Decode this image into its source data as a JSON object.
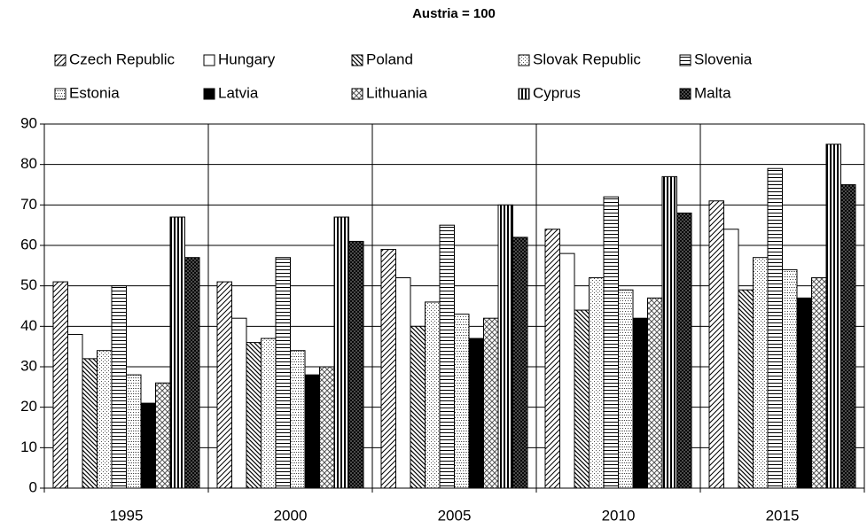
{
  "chart_data": {
    "type": "bar",
    "title": "Austria = 100",
    "categories": [
      "1995",
      "2000",
      "2005",
      "2010",
      "2015"
    ],
    "series": [
      {
        "name": "Czech Republic",
        "color": "#000000",
        "pattern": "diagonal-up",
        "values": [
          51,
          51,
          59,
          64,
          71
        ]
      },
      {
        "name": "Hungary",
        "color": "#000000",
        "pattern": "none",
        "values": [
          38,
          42,
          52,
          58,
          64
        ]
      },
      {
        "name": "Poland",
        "color": "#000000",
        "pattern": "diagonal-down",
        "values": [
          32,
          36,
          40,
          44,
          49
        ]
      },
      {
        "name": "Slovak Republic",
        "color": "#000000",
        "pattern": "dots",
        "values": [
          34,
          37,
          46,
          52,
          57
        ]
      },
      {
        "name": "Slovenia",
        "color": "#000000",
        "pattern": "horizontal",
        "values": [
          50,
          57,
          65,
          72,
          79
        ]
      },
      {
        "name": "Estonia",
        "color": "#000000",
        "pattern": "dotted-grid",
        "values": [
          28,
          34,
          43,
          49,
          54
        ]
      },
      {
        "name": "Latvia",
        "color": "#000000",
        "pattern": "solid",
        "values": [
          21,
          28,
          37,
          42,
          47
        ]
      },
      {
        "name": "Lithuania",
        "color": "#000000",
        "pattern": "crosshatch",
        "values": [
          26,
          30,
          42,
          47,
          52
        ]
      },
      {
        "name": "Cyprus",
        "color": "#000000",
        "pattern": "vertical",
        "values": [
          67,
          67,
          70,
          77,
          85
        ]
      },
      {
        "name": "Malta",
        "color": "#000000",
        "pattern": "dense-crosshatch",
        "values": [
          57,
          61,
          62,
          68,
          75
        ]
      }
    ],
    "ylim": [
      0,
      90
    ],
    "yticks": [
      0,
      10,
      20,
      30,
      40,
      50,
      60,
      70,
      80,
      90
    ],
    "grid": true
  }
}
